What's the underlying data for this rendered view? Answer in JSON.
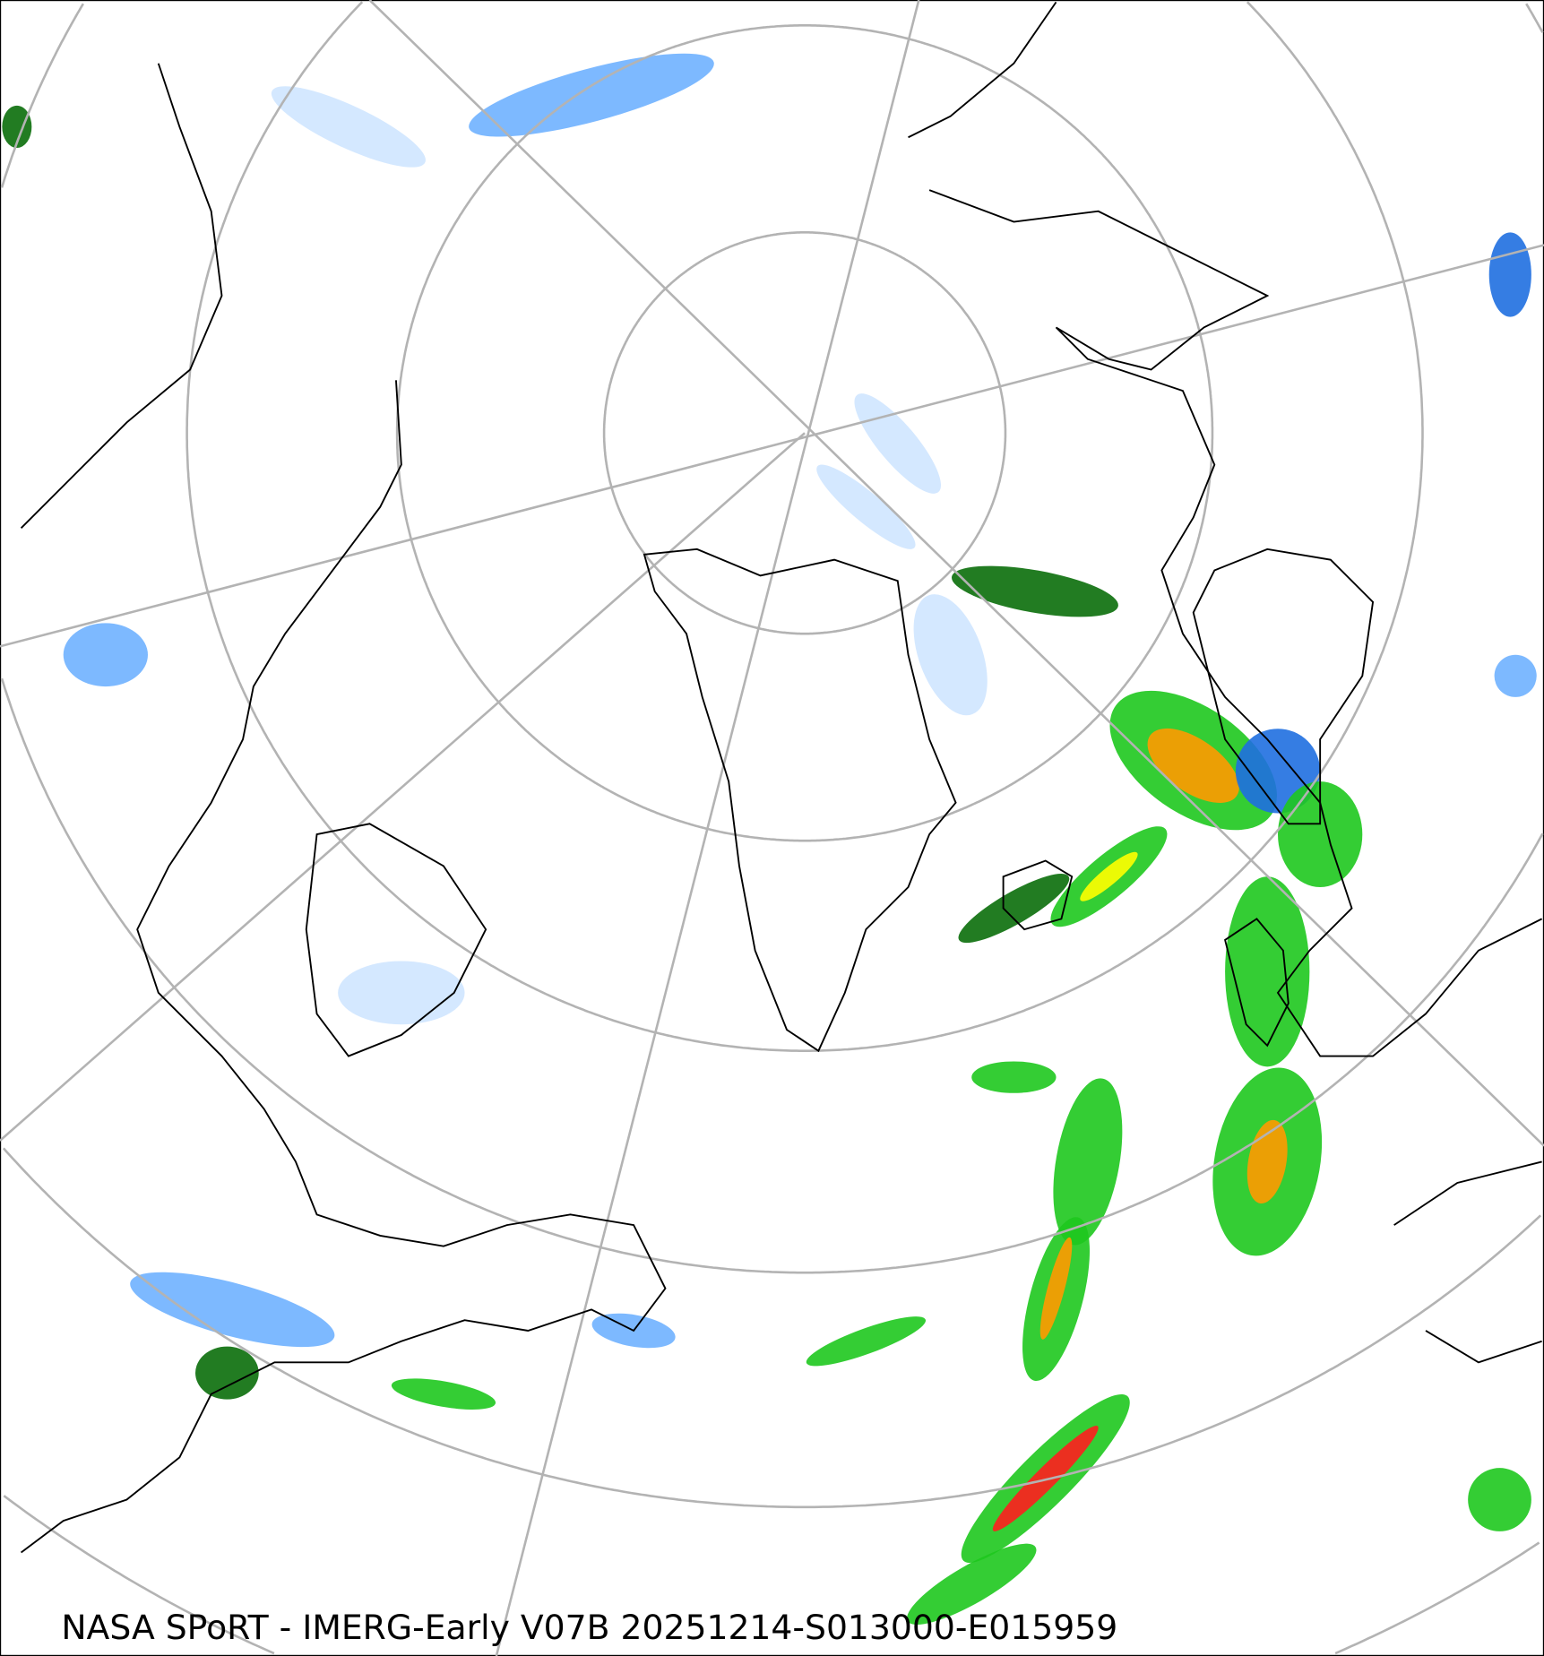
{
  "map": {
    "caption": "NASA SPoRT - IMERG-Early V07B 20251214-S013000-E015959",
    "projection": "north-polar-stereographic",
    "colors": {
      "graticule": "#b3b3b3",
      "coastline": "#000000",
      "precip_light_blue": "#cfe6ff",
      "precip_blue": "#6fb1ff",
      "precip_dark_blue": "#1f6fe0",
      "precip_dark_green": "#0a6e0a",
      "precip_green": "#1ec81e",
      "precip_lime": "#8cf000",
      "precip_yellow": "#ffff00",
      "precip_orange": "#ff9a00",
      "precip_red": "#ff1e1e",
      "precip_pink": "#ff80c0"
    }
  }
}
